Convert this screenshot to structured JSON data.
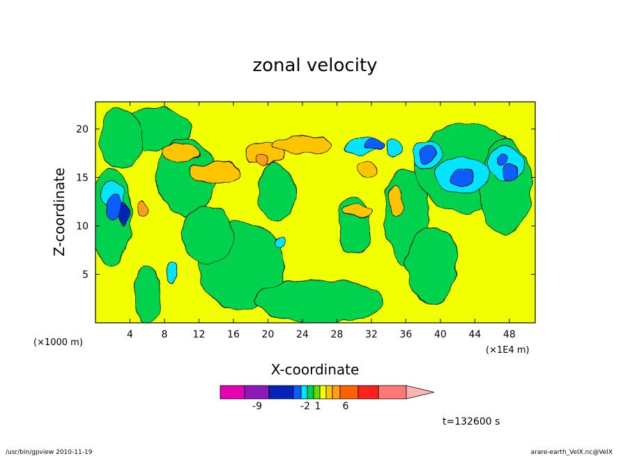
{
  "chart_data": {
    "type": "heatmap",
    "title": "zonal velocity",
    "xlabel": "X-coordinate",
    "ylabel": "Z-coordinate",
    "x_unit_left": "(×1000 m)",
    "x_unit_right": "(×1E4 m)",
    "xlim": [
      0,
      51
    ],
    "ylim": [
      0,
      22.8
    ],
    "x_ticks": [
      4,
      8,
      12,
      16,
      20,
      24,
      28,
      32,
      36,
      40,
      44,
      48
    ],
    "y_ticks": [
      5,
      10,
      15,
      20
    ],
    "background_level_color": "#f2ff00",
    "features": [
      {
        "level": "green",
        "cx": 1.8,
        "cy": 11,
        "rx": 2.4,
        "ry": 5
      },
      {
        "level": "green",
        "cx": 7,
        "cy": 20,
        "rx": 4,
        "ry": 2.2
      },
      {
        "level": "green",
        "cx": 3,
        "cy": 19,
        "rx": 2.5,
        "ry": 3
      },
      {
        "level": "green",
        "cx": 10.5,
        "cy": 15,
        "rx": 3.5,
        "ry": 4
      },
      {
        "level": "green",
        "cx": 17,
        "cy": 6,
        "rx": 5,
        "ry": 4.5
      },
      {
        "level": "green",
        "cx": 13,
        "cy": 9,
        "rx": 3,
        "ry": 3
      },
      {
        "level": "green",
        "cx": 21,
        "cy": 13.5,
        "rx": 2.2,
        "ry": 3
      },
      {
        "level": "green",
        "cx": 26,
        "cy": 2.2,
        "rx": 7.5,
        "ry": 2.2
      },
      {
        "level": "green",
        "cx": 30,
        "cy": 10,
        "rx": 1.8,
        "ry": 3
      },
      {
        "level": "green",
        "cx": 36,
        "cy": 11,
        "rx": 2.5,
        "ry": 5
      },
      {
        "level": "green",
        "cx": 43,
        "cy": 16,
        "rx": 6,
        "ry": 4.5
      },
      {
        "level": "green",
        "cx": 39,
        "cy": 6,
        "rx": 3,
        "ry": 4
      },
      {
        "level": "green",
        "cx": 47.5,
        "cy": 14,
        "rx": 3,
        "ry": 5
      },
      {
        "level": "green",
        "cx": 6,
        "cy": 3,
        "rx": 1.5,
        "ry": 3
      },
      {
        "level": "orange-light",
        "cx": 10,
        "cy": 17.5,
        "rx": 2.2,
        "ry": 1
      },
      {
        "level": "orange-light",
        "cx": 14,
        "cy": 15.5,
        "rx": 3,
        "ry": 1.2
      },
      {
        "level": "orange-light",
        "cx": 19.5,
        "cy": 17.5,
        "rx": 2.2,
        "ry": 1.2
      },
      {
        "level": "orange-light",
        "cx": 24,
        "cy": 18.3,
        "rx": 3.5,
        "ry": 0.9
      },
      {
        "level": "orange-light",
        "cx": 34.8,
        "cy": 12.5,
        "rx": 0.8,
        "ry": 1.5
      },
      {
        "level": "orange-light",
        "cx": 30.5,
        "cy": 11.5,
        "rx": 1.5,
        "ry": 0.6
      },
      {
        "level": "orange-light",
        "cx": 31.5,
        "cy": 15.8,
        "rx": 1.2,
        "ry": 0.7
      },
      {
        "level": "orange",
        "cx": 19.3,
        "cy": 16.8,
        "rx": 0.8,
        "ry": 0.7
      },
      {
        "level": "orange",
        "cx": 5.5,
        "cy": 11.8,
        "rx": 0.6,
        "ry": 0.8
      },
      {
        "level": "cyan",
        "cx": 2,
        "cy": 13.2,
        "rx": 1.4,
        "ry": 1.4
      },
      {
        "level": "cyan",
        "cx": 30.8,
        "cy": 18.2,
        "rx": 1.8,
        "ry": 0.9
      },
      {
        "level": "cyan",
        "cx": 34.5,
        "cy": 18,
        "rx": 0.8,
        "ry": 0.9
      },
      {
        "level": "cyan",
        "cx": 38.5,
        "cy": 17.3,
        "rx": 1.6,
        "ry": 1.6
      },
      {
        "level": "cyan",
        "cx": 42.5,
        "cy": 15.2,
        "rx": 3,
        "ry": 1.9
      },
      {
        "level": "cyan",
        "cx": 47.5,
        "cy": 16.5,
        "rx": 2.2,
        "ry": 1.8
      },
      {
        "level": "cyan",
        "cx": 8.8,
        "cy": 5,
        "rx": 0.6,
        "ry": 1.2
      },
      {
        "level": "cyan",
        "cx": 21.5,
        "cy": 8.2,
        "rx": 0.5,
        "ry": 0.6
      },
      {
        "level": "blue-mid",
        "cx": 32.3,
        "cy": 18.3,
        "rx": 1.2,
        "ry": 0.6
      },
      {
        "level": "blue-mid",
        "cx": 38.5,
        "cy": 17.3,
        "rx": 0.8,
        "ry": 1.1
      },
      {
        "level": "blue-mid",
        "cx": 42.5,
        "cy": 15,
        "rx": 1.3,
        "ry": 0.9
      },
      {
        "level": "blue-mid",
        "cx": 48.2,
        "cy": 15.5,
        "rx": 0.8,
        "ry": 0.8
      },
      {
        "level": "blue-mid",
        "cx": 47.3,
        "cy": 16.8,
        "rx": 0.7,
        "ry": 0.6
      },
      {
        "level": "blue-mid",
        "cx": 2.2,
        "cy": 12,
        "rx": 1,
        "ry": 1.2
      },
      {
        "level": "blue-dark",
        "cx": 3.3,
        "cy": 11.3,
        "rx": 0.6,
        "ry": 1.3
      }
    ],
    "legend": {
      "colors": [
        "#e600b4",
        "#8e19b9",
        "#0023b9",
        "#0a5cff",
        "#00e5ff",
        "#00d24d",
        "#5edc00",
        "#f2ff00",
        "#ffc400",
        "#ff9d1a",
        "#ff6100",
        "#ff2020",
        "#ff7878",
        "#ffb4b4"
      ],
      "tick_labels": [
        "-9",
        "-2",
        "1",
        "6"
      ]
    },
    "time_label": "t=132600 s"
  },
  "footer": {
    "left": "/usr/bin/gpview  2010-11-19",
    "right": "arare-earth_VelX.nc@VelX"
  }
}
